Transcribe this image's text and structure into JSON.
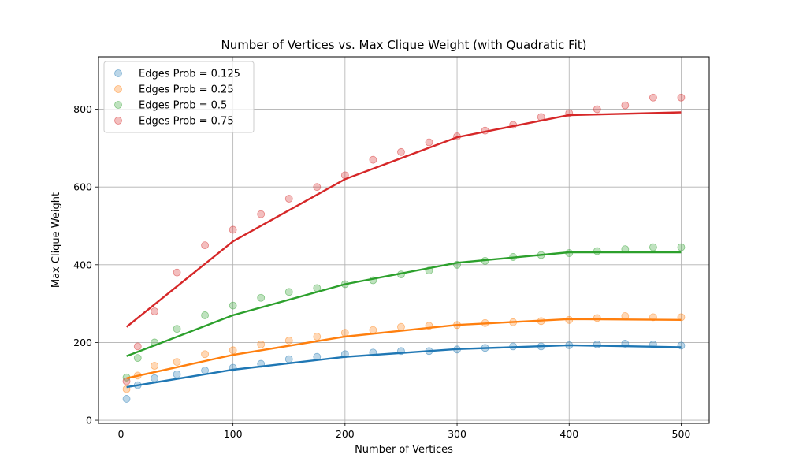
{
  "chart_data": {
    "type": "scatter",
    "title": "Number of Vertices vs. Max Clique Weight (with Quadratic Fit)",
    "xlabel": "Number of Vertices",
    "ylabel": "Max Clique Weight",
    "xlim": [
      -20,
      525
    ],
    "ylim": [
      -8,
      935
    ],
    "xticks": [
      0,
      100,
      200,
      300,
      400,
      500
    ],
    "yticks": [
      0,
      200,
      400,
      600,
      800
    ],
    "grid": true,
    "legend_position": "top-left",
    "point_alpha": 0.3,
    "series": [
      {
        "name": "Edges Prob = 0.125",
        "color": "#1f77b4",
        "x": [
          5,
          15,
          30,
          50,
          75,
          100,
          125,
          150,
          175,
          200,
          225,
          250,
          275,
          300,
          325,
          350,
          375,
          400,
          425,
          450,
          475,
          500
        ],
        "y": [
          55,
          90,
          108,
          118,
          128,
          135,
          145,
          157,
          163,
          170,
          174,
          178,
          178,
          182,
          186,
          190,
          190,
          193,
          195,
          197,
          195,
          192
        ],
        "fit": [
          [
            5,
            85
          ],
          [
            100,
            130
          ],
          [
            200,
            163
          ],
          [
            300,
            183
          ],
          [
            400,
            193
          ],
          [
            500,
            188
          ]
        ]
      },
      {
        "name": "Edges Prob = 0.25",
        "color": "#ff7f0e",
        "x": [
          5,
          15,
          30,
          50,
          75,
          100,
          125,
          150,
          175,
          200,
          225,
          250,
          275,
          300,
          325,
          350,
          375,
          400,
          425,
          450,
          475,
          500
        ],
        "y": [
          80,
          115,
          140,
          150,
          170,
          180,
          195,
          205,
          215,
          225,
          232,
          240,
          243,
          245,
          250,
          252,
          255,
          258,
          263,
          268,
          265,
          265
        ],
        "fit": [
          [
            5,
            108
          ],
          [
            100,
            168
          ],
          [
            200,
            215
          ],
          [
            300,
            245
          ],
          [
            400,
            260
          ],
          [
            500,
            258
          ]
        ]
      },
      {
        "name": "Edges Prob = 0.5",
        "color": "#2ca02c",
        "x": [
          5,
          15,
          30,
          50,
          75,
          100,
          125,
          150,
          175,
          200,
          225,
          250,
          275,
          300,
          325,
          350,
          375,
          400,
          425,
          450,
          475,
          500
        ],
        "y": [
          110,
          160,
          200,
          235,
          270,
          295,
          315,
          330,
          340,
          350,
          360,
          375,
          385,
          400,
          410,
          420,
          425,
          430,
          435,
          440,
          445,
          445
        ],
        "fit": [
          [
            5,
            165
          ],
          [
            100,
            270
          ],
          [
            200,
            350
          ],
          [
            300,
            405
          ],
          [
            400,
            432
          ],
          [
            500,
            432
          ]
        ]
      },
      {
        "name": "Edges Prob = 0.75",
        "color": "#d62728",
        "x": [
          5,
          15,
          30,
          50,
          75,
          100,
          125,
          150,
          175,
          200,
          225,
          250,
          275,
          300,
          325,
          350,
          375,
          400,
          425,
          450,
          475,
          500
        ],
        "y": [
          100,
          190,
          280,
          380,
          450,
          490,
          530,
          570,
          600,
          630,
          670,
          690,
          715,
          730,
          745,
          760,
          780,
          790,
          800,
          810,
          830,
          830
        ],
        "fit": [
          [
            5,
            240
          ],
          [
            100,
            460
          ],
          [
            200,
            620
          ],
          [
            300,
            728
          ],
          [
            400,
            785
          ],
          [
            500,
            792
          ]
        ]
      }
    ]
  }
}
